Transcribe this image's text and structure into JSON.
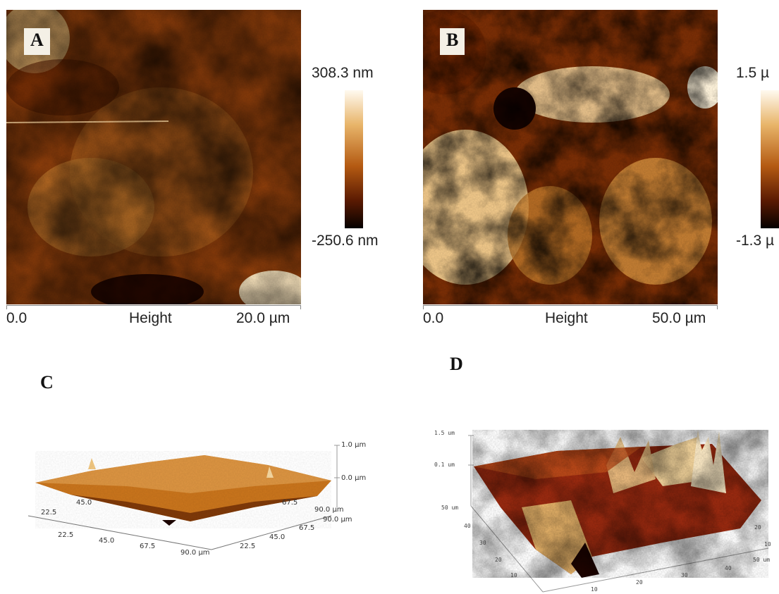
{
  "panels": {
    "a": {
      "letter": "A",
      "scale_max": "308.3 nm",
      "scale_min": "-250.6 nm",
      "axis_start": "0.0",
      "axis_mid": "Height",
      "axis_end": "20.0 µm"
    },
    "b": {
      "letter": "B",
      "scale_max": "1.5 µ",
      "scale_min": "-1.3 µ",
      "axis_start": "0.0",
      "axis_mid": "Height",
      "axis_end": "50.0 µm"
    },
    "c": {
      "letter": "C",
      "z_top": "1.0 µm",
      "z_mid": "0.0 µm",
      "x_ticks": [
        "22.5",
        "45.0",
        "67.5",
        "90.0 µm"
      ],
      "y_ticks": [
        "22.5",
        "45.0",
        "67.5",
        "90.0 µm"
      ],
      "left_y": "22.5",
      "left_y2": "45.0",
      "right_x": "67.5",
      "right_x2": "90.0 µm"
    },
    "d": {
      "letter": "D",
      "z_top": "1.5 um",
      "z_mid": "0.1 um",
      "y_top": "50 um",
      "y_ticks": [
        "40",
        "30",
        "20",
        "10"
      ],
      "x_ticks": [
        "10",
        "20",
        "30",
        "40"
      ],
      "x_end": "50 um",
      "r_ticks": [
        "20",
        "10"
      ]
    }
  },
  "colors": {
    "afm_dark": "#1e0600",
    "afm_mid": "#8a3a0a",
    "afm_light": "#f5d9a3",
    "afm_white": "#fff6e2"
  }
}
